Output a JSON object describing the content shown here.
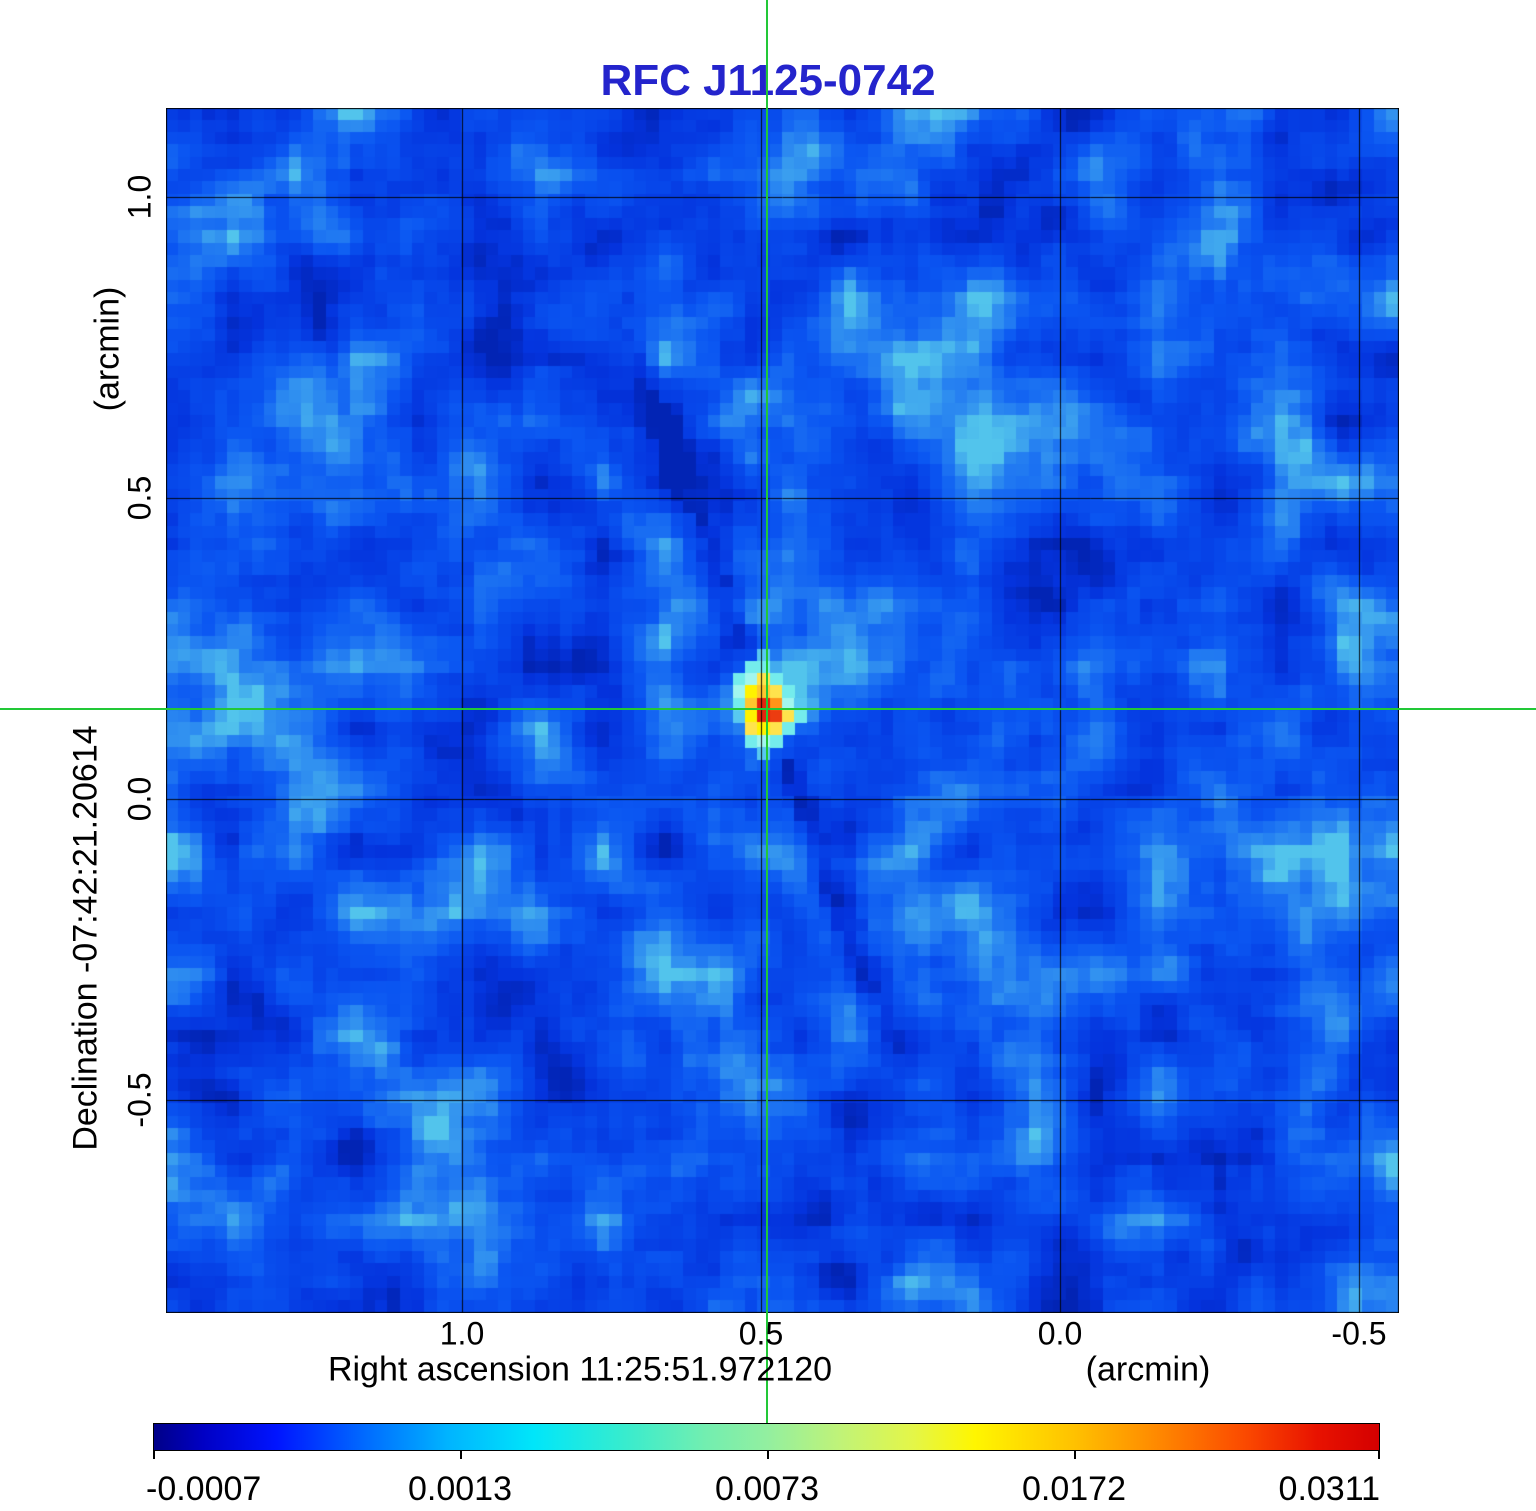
{
  "title": {
    "text": "RFC J1125-0742",
    "color": "#2424cc"
  },
  "y_axis": {
    "unit_label": "(arcmin)",
    "label": "Declination  -07:42:21.20614",
    "ticks": [
      "1.0",
      "0.5",
      "0.0",
      "-0.5"
    ]
  },
  "x_axis": {
    "label": "Right ascension  11:25:51.972120",
    "unit_label": "(arcmin)",
    "ticks": [
      "1.0",
      "0.5",
      "0.0",
      "-0.5"
    ]
  },
  "colorbar": {
    "labels": [
      "-0.0007",
      "0.0013",
      "0.0073",
      "0.0172",
      "0.0311"
    ],
    "gradient_stops": [
      {
        "p": 0.0,
        "c": "#000088"
      },
      {
        "p": 0.04,
        "c": "#0000c4"
      },
      {
        "p": 0.1,
        "c": "#0014ff"
      },
      {
        "p": 0.17,
        "c": "#0068ff"
      },
      {
        "p": 0.24,
        "c": "#00b4ff"
      },
      {
        "p": 0.31,
        "c": "#00e6fa"
      },
      {
        "p": 0.38,
        "c": "#34ecd0"
      },
      {
        "p": 0.45,
        "c": "#72eeb0"
      },
      {
        "p": 0.5,
        "c": "#92efa0"
      },
      {
        "p": 0.56,
        "c": "#c0f378"
      },
      {
        "p": 0.62,
        "c": "#e4f648"
      },
      {
        "p": 0.67,
        "c": "#fff600"
      },
      {
        "p": 0.75,
        "c": "#ffc200"
      },
      {
        "p": 0.82,
        "c": "#ff8800"
      },
      {
        "p": 0.89,
        "c": "#fb4a00"
      },
      {
        "p": 0.95,
        "c": "#e81200"
      },
      {
        "p": 1.0,
        "c": "#d40000"
      }
    ]
  },
  "crosshair": {
    "color": "#22c837"
  },
  "map": {
    "grid_color": "#000000",
    "background_palette": [
      {
        "p": 0.0,
        "c": "#0224b4"
      },
      {
        "p": 0.18,
        "c": "#0433dd"
      },
      {
        "p": 0.38,
        "c": "#0747ea"
      },
      {
        "p": 0.55,
        "c": "#0b57f2"
      },
      {
        "p": 0.72,
        "c": "#1d74f2"
      },
      {
        "p": 0.87,
        "c": "#3698ef"
      },
      {
        "p": 1.0,
        "c": "#52c4ec"
      }
    ]
  },
  "source": {
    "colors": {
      "h0": "#58c8f0",
      "h1": "#74ecec",
      "h2": "#a2f6ee",
      "y1": "#ffe34c",
      "y2": "#fff200",
      "y3": "#ffc62e",
      "o": "#ff9418",
      "r1": "#e2250e",
      "r2": "#ec3c10"
    },
    "cells": [
      [
        0,
        -4,
        "h0"
      ],
      [
        -1,
        -3,
        "h1"
      ],
      [
        0,
        -3,
        "h1"
      ],
      [
        -2,
        -2,
        "h1"
      ],
      [
        -1,
        -2,
        "h2"
      ],
      [
        0,
        -2,
        "y1"
      ],
      [
        1,
        -2,
        "h1"
      ],
      [
        -2,
        -1,
        "h2"
      ],
      [
        -1,
        -1,
        "y2"
      ],
      [
        0,
        -1,
        "y3"
      ],
      [
        1,
        -1,
        "y1"
      ],
      [
        2,
        -1,
        "h1"
      ],
      [
        -2,
        0,
        "h1"
      ],
      [
        -1,
        0,
        "y3"
      ],
      [
        0,
        0,
        "r1"
      ],
      [
        1,
        0,
        "o"
      ],
      [
        2,
        0,
        "h2"
      ],
      [
        3,
        0,
        "h0"
      ],
      [
        -2,
        1,
        "h0"
      ],
      [
        -1,
        1,
        "y2"
      ],
      [
        0,
        1,
        "r1"
      ],
      [
        1,
        1,
        "r2"
      ],
      [
        2,
        1,
        "y1"
      ],
      [
        3,
        1,
        "h1"
      ],
      [
        -1,
        2,
        "y1"
      ],
      [
        0,
        2,
        "y2"
      ],
      [
        1,
        2,
        "y1"
      ],
      [
        2,
        2,
        "h1"
      ],
      [
        -1,
        3,
        "h1"
      ],
      [
        0,
        3,
        "h2"
      ],
      [
        1,
        3,
        "h1"
      ],
      [
        0,
        4,
        "h0"
      ]
    ]
  },
  "chart_data": {
    "type": "heatmap",
    "title": "RFC J1125-0742",
    "xlabel": "Right ascension  11:25:51.972120 (arcmin)",
    "ylabel": "Declination  -07:42:21.20614 (arcmin)",
    "x_ticks_arcmin": [
      1.0,
      0.5,
      0.0,
      -0.5
    ],
    "y_ticks_arcmin": [
      1.0,
      0.5,
      0.0,
      -0.5
    ],
    "x_range_arcmin": [
      1.49,
      -0.57
    ],
    "y_range_arcmin": [
      1.15,
      -0.85
    ],
    "grid": true,
    "colorbar_scale_values": [
      -0.0007,
      0.0013,
      0.0073,
      0.0172,
      0.0311
    ],
    "peak_value": 0.0311,
    "background_level_approx": 0.001,
    "crosshair_position_arcmin": {
      "x": 0.5,
      "y": 0.15
    },
    "source_peak_position_arcmin": {
      "x": 0.5,
      "y": 0.15
    },
    "legend_position": "bottom-colorbar"
  }
}
